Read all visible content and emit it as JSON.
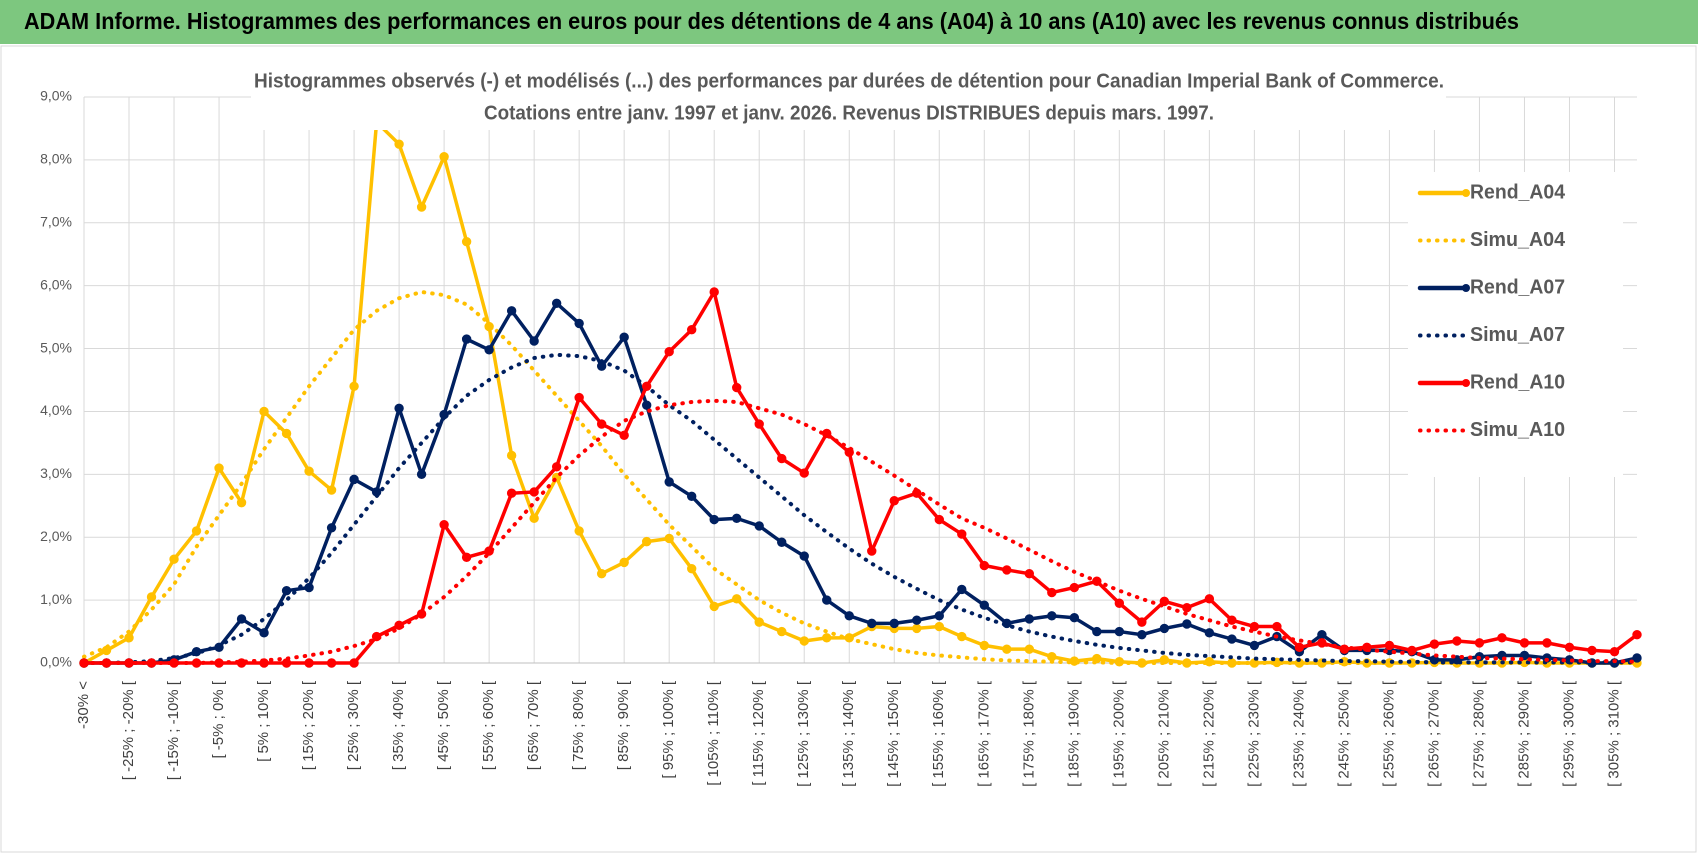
{
  "header": {
    "title": "ADAM Informe. Histogrammes des performances en euros pour des détentions de 4 ans (A04) à 10 ans (A10) avec les revenus connus distribués"
  },
  "chart_data": {
    "type": "line",
    "title": [
      "Histogrammes observés (-) et modélisés (...) des performances par durées de détention pour Canadian Imperial Bank of Commerce.",
      "Cotations entre janv. 1997 et janv. 2026. Revenus DISTRIBUES depuis mars. 1997."
    ],
    "categories": [
      "-30% <",
      null,
      "[ -25% ; -20% [",
      null,
      "[ -15% ; -10% [",
      null,
      "[ -5% ; 0% [",
      null,
      "[ 5% ; 10% [",
      null,
      "[ 15% ; 20% [",
      null,
      "[ 25% ; 30% [",
      null,
      "[ 35% ; 40% [",
      null,
      "[ 45% ; 50% [",
      null,
      "[ 55% ; 60% [",
      null,
      "[ 65% ; 70% [",
      null,
      "[ 75% ; 80% [",
      null,
      "[ 85% ; 90% [",
      null,
      "[ 95% ; 100% [",
      null,
      "[ 105% ; 110% [",
      null,
      "[ 115% ; 120% [",
      null,
      "[ 125% ; 130% [",
      null,
      "[ 135% ; 140% [",
      null,
      "[ 145% ; 150% [",
      null,
      "[ 155% ; 160% [",
      null,
      "[ 165% ; 170% [",
      null,
      "[ 175% ; 180% [",
      null,
      "[ 185% ; 190% [",
      null,
      "[ 195% ; 200% [",
      null,
      "[ 205% ; 210% [",
      null,
      "[ 215% ; 220% [",
      null,
      "[ 225% ; 230% [",
      null,
      "[ 235% ; 240% [",
      null,
      "[ 245% ; 250% [",
      null,
      "[ 255% ; 260% [",
      null,
      "[ 265% ; 270% [",
      null,
      "[ 275% ; 280% [",
      null,
      "[ 285% ; 290% [",
      null,
      "[ 295% ; 300% [",
      null,
      "[ 305% ; 310% [",
      null
    ],
    "ylim": [
      0,
      9
    ],
    "yticks": [
      {
        "value": 0,
        "label": "0,0%"
      },
      {
        "value": 1,
        "label": "1,0%"
      },
      {
        "value": 2,
        "label": "2,0%"
      },
      {
        "value": 3,
        "label": "3,0%"
      },
      {
        "value": 4,
        "label": "4,0%"
      },
      {
        "value": 5,
        "label": "5,0%"
      },
      {
        "value": 6,
        "label": "6,0%"
      },
      {
        "value": 7,
        "label": "7,0%"
      },
      {
        "value": 8,
        "label": "8,0%"
      },
      {
        "value": 9,
        "label": "9,0%"
      }
    ],
    "grid": true,
    "legend": "right",
    "series": [
      {
        "name": "Rend_A04",
        "color": "#ffc000",
        "style": "solid",
        "markers": true,
        "values": [
          0,
          0.2,
          0.4,
          1.05,
          1.65,
          2.1,
          3.1,
          2.55,
          4.0,
          3.65,
          3.05,
          2.75,
          4.4,
          8.6,
          8.25,
          7.25,
          8.05,
          6.7,
          5.35,
          3.3,
          2.3,
          2.95,
          2.1,
          1.42,
          1.6,
          1.93,
          1.98,
          1.5,
          0.9,
          1.02,
          0.65,
          0.5,
          0.35,
          0.4,
          0.4,
          0.58,
          0.55,
          0.55,
          0.58,
          0.42,
          0.28,
          0.22,
          0.22,
          0.1,
          0.03,
          0.07,
          0.02,
          0,
          0.05,
          0,
          0.02,
          0,
          0,
          0.01,
          0,
          0,
          0.02,
          0,
          0,
          0,
          0.01,
          0,
          0,
          0,
          0.01,
          0,
          0,
          0,
          0,
          0
        ]
      },
      {
        "name": "Simu_A04",
        "color": "#ffc000",
        "style": "dotted",
        "markers": false,
        "values": [
          0.1,
          0.25,
          0.5,
          0.85,
          1.25,
          1.85,
          2.35,
          2.85,
          3.4,
          3.9,
          4.4,
          4.85,
          5.3,
          5.6,
          5.8,
          5.9,
          5.85,
          5.7,
          5.4,
          5.05,
          4.65,
          4.25,
          3.85,
          3.45,
          3.0,
          2.6,
          2.2,
          1.85,
          1.5,
          1.25,
          1.0,
          0.8,
          0.63,
          0.5,
          0.38,
          0.3,
          0.22,
          0.16,
          0.12,
          0.09,
          0.06,
          0.04,
          0.03,
          0.02,
          0.01,
          0.01,
          0,
          0,
          0,
          0,
          0,
          0,
          0,
          0,
          0,
          0,
          0,
          0,
          0,
          0,
          0,
          0,
          0,
          0,
          0,
          0,
          0,
          0,
          0,
          0
        ]
      },
      {
        "name": "Rend_A07",
        "color": "#002060",
        "style": "solid",
        "markers": true,
        "values": [
          0,
          0,
          0,
          0,
          0.05,
          0.18,
          0.25,
          0.7,
          0.48,
          1.15,
          1.2,
          2.15,
          2.92,
          2.72,
          4.05,
          3.0,
          3.95,
          5.15,
          4.98,
          5.6,
          5.12,
          5.72,
          5.4,
          4.72,
          5.18,
          4.1,
          2.88,
          2.65,
          2.28,
          2.3,
          2.18,
          1.92,
          1.7,
          1.0,
          0.75,
          0.63,
          0.63,
          0.68,
          0.75,
          1.17,
          0.92,
          0.63,
          0.7,
          0.75,
          0.72,
          0.5,
          0.5,
          0.45,
          0.55,
          0.62,
          0.48,
          0.38,
          0.28,
          0.42,
          0.18,
          0.45,
          0.2,
          0.2,
          0.2,
          0.18,
          0.05,
          0.05,
          0.1,
          0.12,
          0.12,
          0.08,
          0.05,
          0,
          0,
          0.08
        ]
      },
      {
        "name": "Simu_A07",
        "color": "#002060",
        "style": "dotted",
        "markers": false,
        "values": [
          0,
          0,
          0.01,
          0.03,
          0.08,
          0.15,
          0.28,
          0.45,
          0.7,
          1.0,
          1.35,
          1.75,
          2.2,
          2.65,
          3.1,
          3.5,
          3.9,
          4.25,
          4.5,
          4.7,
          4.85,
          4.9,
          4.88,
          4.8,
          4.65,
          4.4,
          4.1,
          3.85,
          3.55,
          3.25,
          2.95,
          2.65,
          2.35,
          2.08,
          1.82,
          1.58,
          1.37,
          1.18,
          1.0,
          0.85,
          0.72,
          0.6,
          0.5,
          0.42,
          0.35,
          0.29,
          0.24,
          0.2,
          0.16,
          0.13,
          0.11,
          0.09,
          0.07,
          0.06,
          0.05,
          0.04,
          0.03,
          0.03,
          0.02,
          0.02,
          0.01,
          0.01,
          0.01,
          0.01,
          0.01,
          0.01,
          0.01,
          0.01,
          0.01,
          0.01
        ]
      },
      {
        "name": "Rend_A10",
        "color": "#ff0000",
        "style": "solid",
        "markers": true,
        "values": [
          0,
          0,
          0,
          0,
          0,
          0,
          0,
          0,
          0,
          0,
          0,
          0,
          0,
          0.42,
          0.6,
          0.78,
          2.2,
          1.68,
          1.78,
          2.7,
          2.72,
          3.12,
          4.22,
          3.8,
          3.62,
          4.4,
          4.95,
          5.3,
          5.9,
          4.38,
          3.8,
          3.25,
          3.02,
          3.65,
          3.35,
          1.78,
          2.58,
          2.7,
          2.28,
          2.05,
          1.55,
          1.48,
          1.42,
          1.12,
          1.2,
          1.3,
          0.95,
          0.65,
          0.98,
          0.88,
          1.02,
          0.68,
          0.58,
          0.58,
          0.25,
          0.32,
          0.22,
          0.25,
          0.28,
          0.2,
          0.3,
          0.35,
          0.32,
          0.4,
          0.32,
          0.32,
          0.25,
          0.2,
          0.18,
          0.45
        ]
      },
      {
        "name": "Simu_A10",
        "color": "#ff0000",
        "style": "dotted",
        "markers": false,
        "values": [
          0,
          0,
          0,
          0,
          0,
          0,
          0.01,
          0.02,
          0.04,
          0.07,
          0.12,
          0.18,
          0.27,
          0.38,
          0.55,
          0.78,
          1.05,
          1.38,
          1.75,
          2.15,
          2.55,
          2.95,
          3.3,
          3.6,
          3.85,
          4.0,
          4.1,
          4.15,
          4.17,
          4.15,
          4.05,
          3.95,
          3.8,
          3.62,
          3.42,
          3.2,
          2.98,
          2.75,
          2.52,
          2.3,
          2.15,
          1.98,
          1.8,
          1.62,
          1.45,
          1.3,
          1.15,
          1.02,
          0.9,
          0.78,
          0.68,
          0.58,
          0.5,
          0.42,
          0.36,
          0.3,
          0.25,
          0.21,
          0.18,
          0.15,
          0.12,
          0.1,
          0.08,
          0.07,
          0.06,
          0.05,
          0.04,
          0.03,
          0.03,
          0.02
        ]
      }
    ]
  }
}
